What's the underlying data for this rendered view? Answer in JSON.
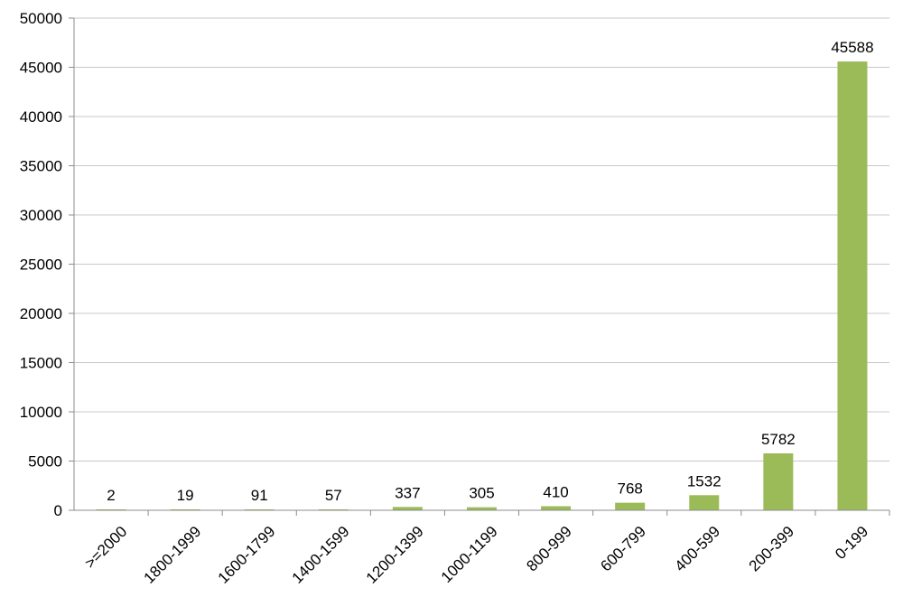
{
  "chart_data": {
    "type": "bar",
    "categories": [
      ">=2000",
      "1800-1999",
      "1600-1799",
      "1400-1599",
      "1200-1399",
      "1000-1199",
      "800-999",
      "600-799",
      "400-599",
      "200-399",
      "0-199"
    ],
    "values": [
      2,
      19,
      91,
      57,
      337,
      305,
      410,
      768,
      1532,
      5782,
      45588
    ],
    "data_labels": [
      "2",
      "19",
      "91",
      "57",
      "337",
      "305",
      "410",
      "768",
      "1532",
      "5782",
      "45588"
    ],
    "y_ticks": [
      "0",
      "5000",
      "10000",
      "15000",
      "20000",
      "25000",
      "30000",
      "35000",
      "40000",
      "45000",
      "50000"
    ],
    "ylim": [
      0,
      50000
    ],
    "bar_color": "#9bbb59",
    "grid": true,
    "title": "",
    "xlabel": "",
    "ylabel": ""
  }
}
